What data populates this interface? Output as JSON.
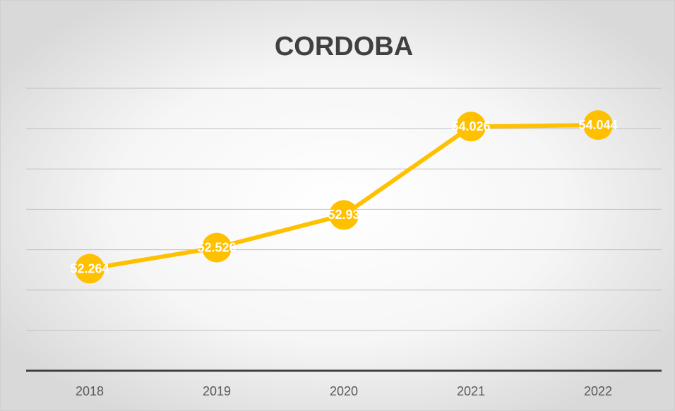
{
  "chart_data": {
    "type": "line",
    "title": "CORDOBA",
    "categories": [
      "2018",
      "2019",
      "2020",
      "2021",
      "2022"
    ],
    "series": [
      {
        "name": "CORDOBA",
        "color": "#FFC000",
        "values": [
          52.264,
          52.526,
          52.93,
          54.026,
          54.044
        ]
      }
    ],
    "ylim": [
      51,
      54.5
    ],
    "yticks": [
      51,
      51.5,
      52,
      52.5,
      53,
      53.5,
      54,
      54.5
    ],
    "grid": true
  }
}
